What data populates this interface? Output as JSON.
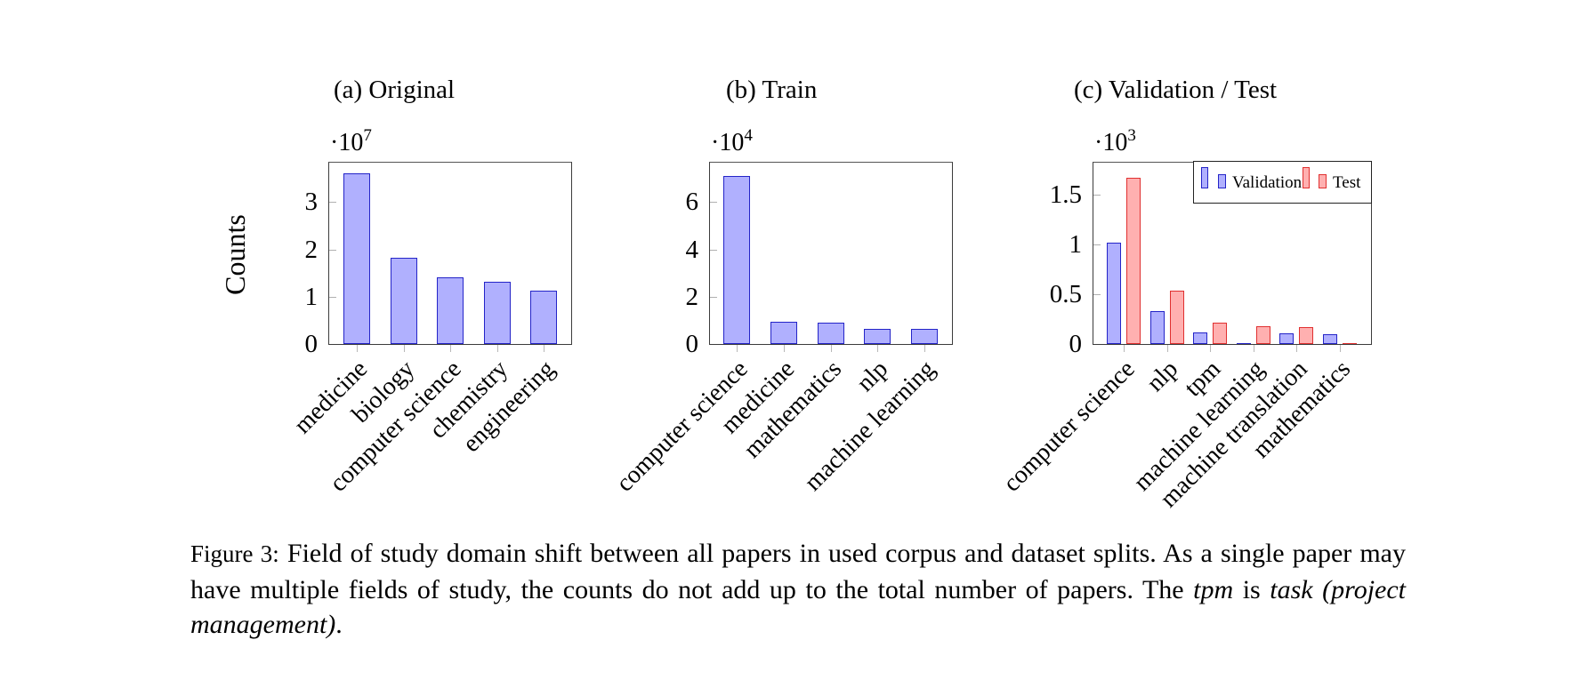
{
  "figure": {
    "caption_label": "Figure 3:",
    "caption_parts": [
      {
        "text": "Field of study domain shift between all papers in used corpus and dataset splits.  As a single paper may have multiple fields of study, the counts do not add up to the total number of papers. The ",
        "italic": false
      },
      {
        "text": "tpm",
        "italic": true
      },
      {
        "text": " is ",
        "italic": false
      },
      {
        "text": "task (project management)",
        "italic": true
      },
      {
        "text": ".",
        "italic": false
      }
    ],
    "shared_ylabel": "Counts"
  },
  "chart_data": [
    {
      "id": "a",
      "type": "bar",
      "title": "(a) Original",
      "multiplier_base": "·10",
      "multiplier_exp": "7",
      "ylabel": "Counts",
      "xlabel": "",
      "ylim": [
        0,
        3.85
      ],
      "yticks": [
        0,
        1,
        2,
        3
      ],
      "ytick_labels": [
        "0",
        "1",
        "2",
        "3"
      ],
      "grid": false,
      "categories": [
        "medicine",
        "biology",
        "computer science",
        "chemistry",
        "engineering"
      ],
      "series": [
        {
          "name": "Original",
          "color": "#b0b0fe",
          "edge": "#2424c8",
          "values": [
            3.6,
            1.83,
            1.41,
            1.32,
            1.13
          ]
        }
      ],
      "legend": null
    },
    {
      "id": "b",
      "type": "bar",
      "title": "(b) Train",
      "multiplier_base": "·10",
      "multiplier_exp": "4",
      "ylabel": "",
      "xlabel": "",
      "ylim": [
        0,
        7.7
      ],
      "yticks": [
        0,
        2,
        4,
        6
      ],
      "ytick_labels": [
        "0",
        "2",
        "4",
        "6"
      ],
      "grid": false,
      "categories": [
        "computer science",
        "medicine",
        "mathematics",
        "nlp",
        "machine learning"
      ],
      "series": [
        {
          "name": "Train",
          "color": "#b0b0fe",
          "edge": "#2424c8",
          "values": [
            7.09,
            0.95,
            0.92,
            0.65,
            0.63
          ]
        }
      ],
      "legend": null
    },
    {
      "id": "c",
      "type": "bar",
      "title": "(c) Validation / Test",
      "multiplier_base": "·10",
      "multiplier_exp": "3",
      "ylabel": "",
      "xlabel": "",
      "ylim": [
        0,
        1.83
      ],
      "yticks": [
        0,
        0.5,
        1,
        1.5
      ],
      "ytick_labels": [
        "0",
        "0.5",
        "1",
        "1.5"
      ],
      "grid": false,
      "categories": [
        "computer science",
        "nlp",
        "tpm",
        "machine learning",
        "machine translation",
        "mathematics"
      ],
      "series": [
        {
          "name": "Validation",
          "color": "#b0b0fe",
          "edge": "#2424c8",
          "values": [
            1.02,
            0.33,
            0.12,
            0.0,
            0.11,
            0.1
          ]
        },
        {
          "name": "Test",
          "color": "#ffb0b0",
          "edge": "#e03030",
          "values": [
            1.67,
            0.54,
            0.21,
            0.175,
            0.17,
            0.0
          ]
        }
      ],
      "legend": {
        "position": "north east",
        "entries": [
          "Validation",
          "Test"
        ]
      }
    }
  ]
}
